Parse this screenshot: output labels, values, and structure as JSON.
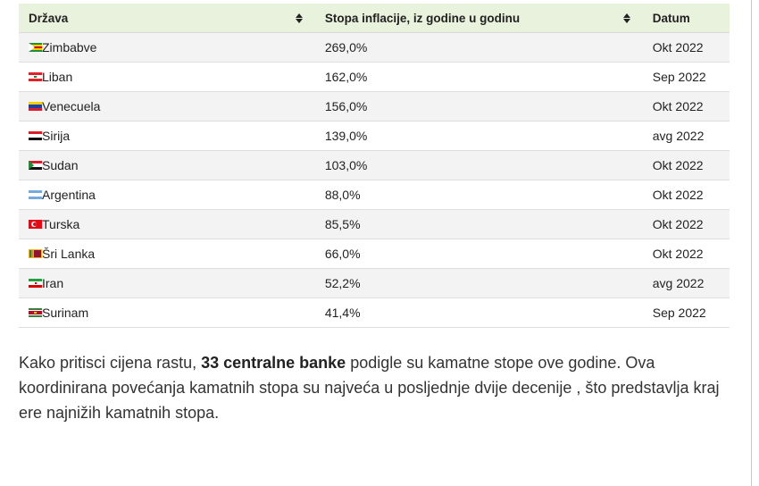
{
  "table": {
    "headers": {
      "country": "Država",
      "rate": "Stopa inflacije, iz godine u godinu",
      "date": "Datum"
    },
    "rows": [
      {
        "flag": "zimbabwe-flag-icon",
        "country": "Zimbabve",
        "rate": "269,0%",
        "date": "Okt 2022"
      },
      {
        "flag": "lebanon-flag-icon",
        "country": "Liban",
        "rate": "162,0%",
        "date": "Sep 2022"
      },
      {
        "flag": "venezuela-flag-icon",
        "country": "Venecuela",
        "rate": "156,0%",
        "date": "Okt 2022"
      },
      {
        "flag": "syria-flag-icon",
        "country": "Sirija",
        "rate": "139,0%",
        "date": "avg 2022"
      },
      {
        "flag": "sudan-flag-icon",
        "country": "Sudan",
        "rate": "103,0%",
        "date": "Okt 2022"
      },
      {
        "flag": "argentina-flag-icon",
        "country": "Argentina",
        "rate": "88,0%",
        "date": "Okt 2022"
      },
      {
        "flag": "turkey-flag-icon",
        "country": "Turska",
        "rate": "85,5%",
        "date": "Okt 2022"
      },
      {
        "flag": "sri-lanka-flag-icon",
        "country": "Šri Lanka",
        "rate": "66,0%",
        "date": "Okt 2022"
      },
      {
        "flag": "iran-flag-icon",
        "country": "Iran",
        "rate": "52,2%",
        "date": "avg 2022"
      },
      {
        "flag": "suriname-flag-icon",
        "country": "Surinam",
        "rate": "41,4%",
        "date": "Sep 2022"
      }
    ]
  },
  "paragraph": {
    "before": "Kako pritisci cijena rastu, ",
    "bold": "33 centralne banke",
    "after": " podigle su kamatne stope ove godine. Ova koordinirana povećanja kamatnih stopa su najveća u posljednje dvije decenije , što predstavlja kraj ere najnižih kamatnih stopa."
  },
  "colors": {
    "header_bg": "#e9f2dc",
    "row_stripe": "#f3f3f3"
  }
}
